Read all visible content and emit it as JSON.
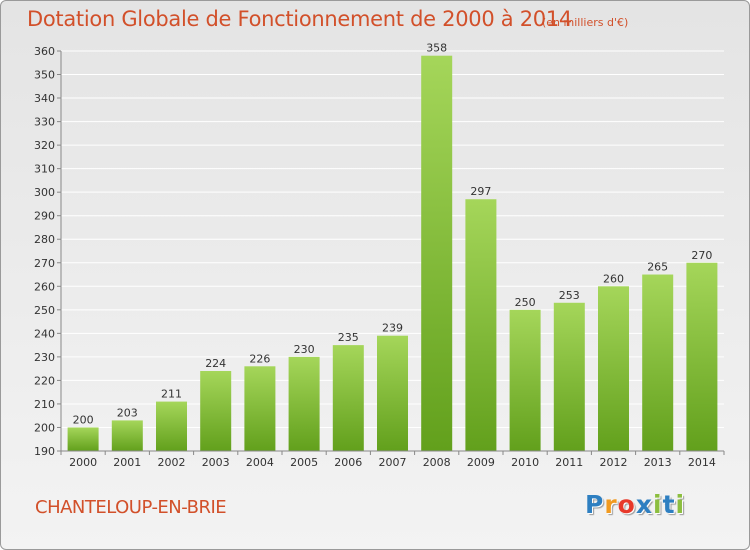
{
  "title": "Dotation Globale de Fonctionnement de 2000 à 2014",
  "subtitle": "(en milliers d'€)",
  "commune": "CHANTELOUP-EN-BRIE",
  "logo": {
    "letters": [
      "P",
      "r",
      "o",
      "x",
      "i",
      "t",
      "i"
    ],
    "colors": [
      "#2e7fc1",
      "#f19a1f",
      "#e8392a",
      "#2e7fc1",
      "#8cbe3f",
      "#2e7fc1",
      "#8cbe3f"
    ]
  },
  "colors": {
    "title": "#d2502a",
    "bar_light": "#a5d65a",
    "bar_dark": "#62a01c",
    "grid": "#ffffff",
    "axis_text": "#333333"
  },
  "chart_data": {
    "type": "bar",
    "title": "Dotation Globale de Fonctionnement de 2000 à 2014",
    "subtitle": "(en milliers d'€)",
    "categories": [
      "2000",
      "2001",
      "2002",
      "2003",
      "2004",
      "2005",
      "2006",
      "2007",
      "2008",
      "2009",
      "2010",
      "2011",
      "2012",
      "2013",
      "2014"
    ],
    "values": [
      200,
      203,
      211,
      224,
      226,
      230,
      235,
      239,
      358,
      297,
      250,
      253,
      260,
      265,
      270
    ],
    "ylim": [
      190,
      360
    ],
    "yticks": [
      190,
      200,
      210,
      220,
      230,
      240,
      250,
      260,
      270,
      280,
      290,
      300,
      310,
      320,
      330,
      340,
      350,
      360
    ],
    "grid": true,
    "data_labels": true
  }
}
